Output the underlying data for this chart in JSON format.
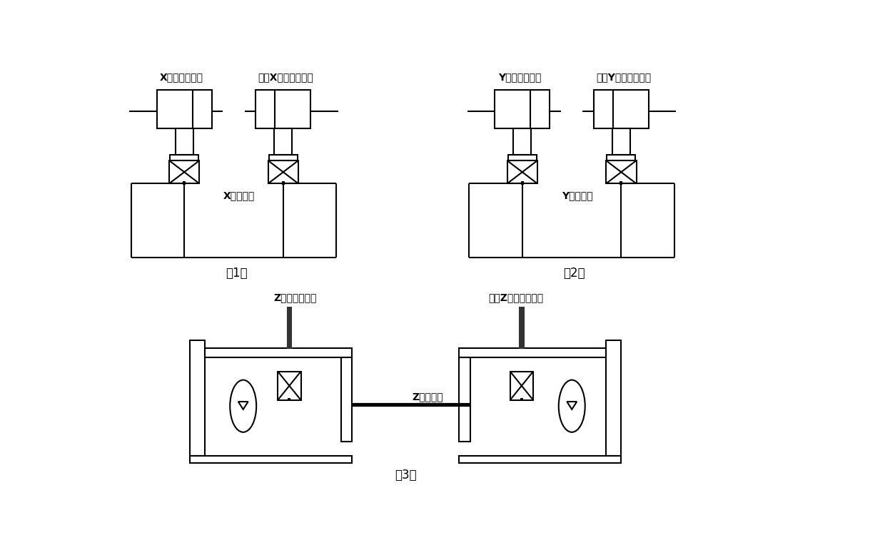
{
  "bg_color": "#ffffff",
  "line_color": "#000000",
  "line_width": 1.5,
  "label1": "X气体压缩机构",
  "label2": "镜像X气体压缩机构",
  "label3": "Y气体压缩机构",
  "label4": "镜像Y气体压缩机构",
  "label5": "Z气体压缩机构",
  "label6": "镜像Z气体压缩机构",
  "channel_x": "X气体通路",
  "channel_y": "Y气体通路",
  "channel_z": "Z气体通路",
  "caption1": "（1）",
  "caption2": "（2）",
  "caption3": "（3）"
}
